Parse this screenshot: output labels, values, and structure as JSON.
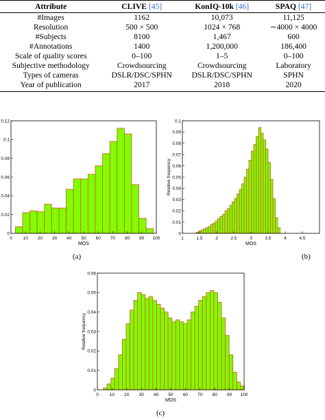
{
  "table": {
    "headers": [
      {
        "name": "Attribute",
        "cite": ""
      },
      {
        "name": "CLIVE",
        "cite": "45"
      },
      {
        "name": "KonIQ-10k",
        "cite": "46"
      },
      {
        "name": "SPAQ",
        "cite": "47"
      }
    ],
    "rows": [
      [
        "#Images",
        "1162",
        "10,073",
        "11,125"
      ],
      [
        "Resolution",
        "500 × 500",
        "1024 × 768",
        "∼4000 × 4000"
      ],
      [
        "#Subjects",
        "8100",
        "1,467",
        "600"
      ],
      [
        "#Annotations",
        "1400",
        "1,200,000",
        "186,400"
      ],
      [
        "Scale of quality scores",
        "0–100",
        "1–5",
        "0–100"
      ],
      [
        "Subjective methodology",
        "Crowdsourcing",
        "Crowdsourcing",
        "Laboratory"
      ],
      [
        "Types of cameras",
        "DSLR/DSC/SPHN",
        "DSLR/DSC/SPHN",
        "SPHN"
      ],
      [
        "Year of publication",
        "2017",
        "2018",
        "2020"
      ]
    ]
  },
  "colors": {
    "bar_fill": "#7fff00",
    "bar_edge": "#d9532b",
    "cite": "#2e6ccf"
  },
  "captions": {
    "a": "(a)",
    "b": "(b)",
    "c": "(c)"
  },
  "chart_data": [
    {
      "id": "a",
      "type": "bar",
      "xlabel": "MOS",
      "ylabel": "",
      "xlim": [
        0,
        100
      ],
      "ylim": [
        0,
        0.12
      ],
      "xticks": [
        "0",
        "10",
        "20",
        "30",
        "40",
        "50",
        "60",
        "70",
        "80",
        "90",
        "100"
      ],
      "yticks": [
        "0",
        "0.02",
        "0.04",
        "0.06",
        "0.08",
        "0.1",
        "0.12"
      ],
      "bin_start": 3,
      "bin_width": 5,
      "values": [
        0.007,
        0.022,
        0.024,
        0.023,
        0.031,
        0.027,
        0.027,
        0.047,
        0.058,
        0.058,
        0.063,
        0.072,
        0.085,
        0.098,
        0.112,
        0.106,
        0.052,
        0.016,
        0.005
      ]
    },
    {
      "id": "b",
      "type": "bar",
      "xlabel": "MOS",
      "ylabel": "Relative frequency",
      "xlim": [
        1,
        5
      ],
      "ylim": [
        0,
        0.1
      ],
      "xticks": [
        "1",
        "1.5",
        "2",
        "2.5",
        "3",
        "3.5",
        "4",
        "4.5"
      ],
      "yticks": [
        "0",
        "0.01",
        "0.02",
        "0.03",
        "0.04",
        "0.05",
        "0.06",
        "0.07",
        "0.08",
        "0.09",
        "0.1"
      ],
      "bin_start": 1.4,
      "bin_width": 0.07,
      "values": [
        0.001,
        0.002,
        0.003,
        0.004,
        0.005,
        0.006,
        0.008,
        0.009,
        0.011,
        0.013,
        0.015,
        0.017,
        0.02,
        0.022,
        0.025,
        0.028,
        0.031,
        0.035,
        0.039,
        0.044,
        0.05,
        0.057,
        0.065,
        0.073,
        0.079,
        0.086,
        0.094,
        0.089,
        0.083,
        0.075,
        0.063,
        0.048,
        0.031,
        0.014,
        0.005
      ]
    },
    {
      "id": "c",
      "type": "bar",
      "xlabel": "MOS",
      "ylabel": "Relative frequency",
      "xlim": [
        0,
        100
      ],
      "ylim": [
        0,
        0.06
      ],
      "xticks": [
        "0",
        "10",
        "20",
        "30",
        "40",
        "50",
        "60",
        "70",
        "80",
        "90",
        "100"
      ],
      "yticks": [
        "0",
        "0.01",
        "0.02",
        "0.03",
        "0.04",
        "0.05",
        "0.06"
      ],
      "bin_start": 4,
      "bin_width": 2.6,
      "values": [
        0.001,
        0.003,
        0.006,
        0.011,
        0.018,
        0.026,
        0.034,
        0.041,
        0.046,
        0.05,
        0.049,
        0.047,
        0.048,
        0.046,
        0.044,
        0.042,
        0.04,
        0.037,
        0.035,
        0.036,
        0.035,
        0.034,
        0.036,
        0.04,
        0.043,
        0.046,
        0.048,
        0.05,
        0.051,
        0.05,
        0.045,
        0.037,
        0.028,
        0.018,
        0.009,
        0.004,
        0.002
      ]
    }
  ]
}
